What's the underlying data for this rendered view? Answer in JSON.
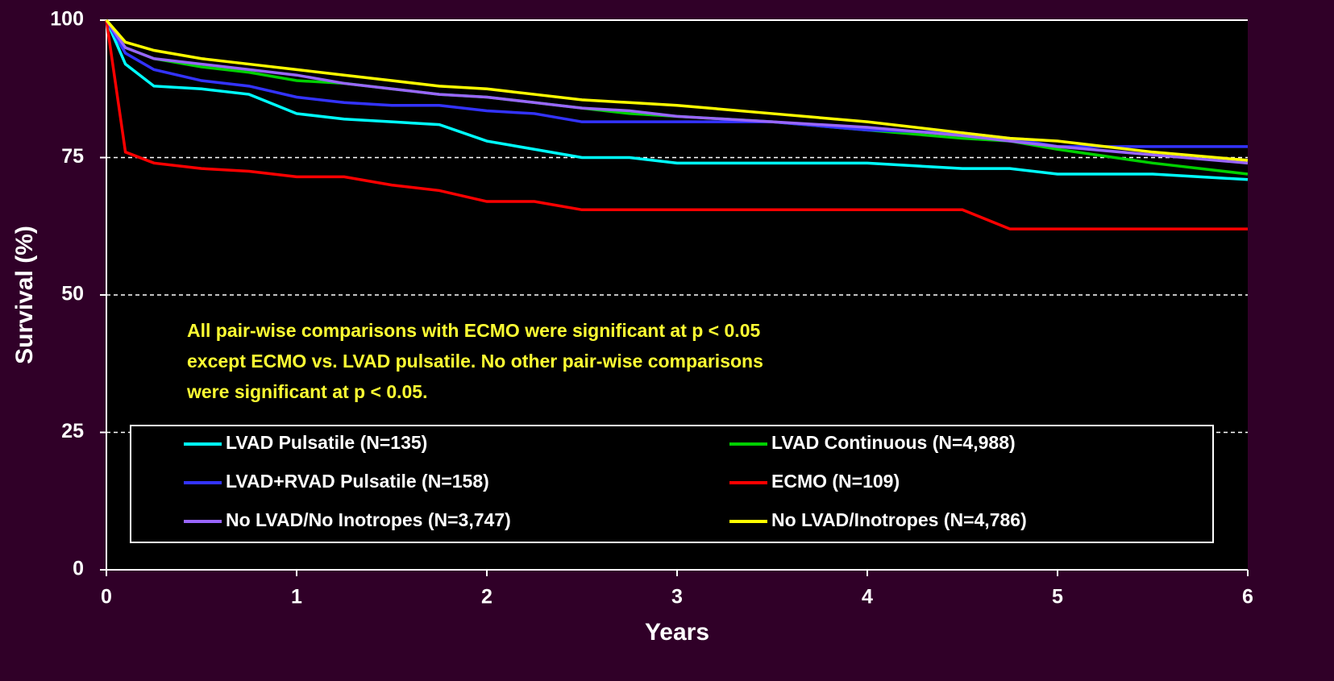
{
  "chart_data": {
    "type": "line",
    "xlabel": "Years",
    "ylabel": "Survival (%)",
    "annotation": [
      "All pair-wise comparisons with ECMO were significant at p < 0.05",
      "except ECMO vs. LVAD pulsatile. No other pair-wise comparisons",
      "were significant at p < 0.05."
    ],
    "x": [
      0,
      0.1,
      0.25,
      0.5,
      0.75,
      1,
      1.25,
      1.5,
      1.75,
      2,
      2.25,
      2.5,
      2.75,
      3,
      3.5,
      4,
      4.5,
      4.75,
      5,
      5.5,
      6
    ],
    "series": [
      {
        "name": "LVAD Pulsatile (N=135)",
        "color": "#00ffff",
        "values": [
          100,
          92,
          88,
          87.5,
          86.5,
          83,
          82,
          81.5,
          81,
          78,
          76.5,
          75,
          75,
          74,
          74,
          74,
          73,
          73,
          72,
          72,
          71
        ]
      },
      {
        "name": "LVAD Continuous (N=4,988)",
        "color": "#00d000",
        "values": [
          100,
          95,
          93,
          91.5,
          90.5,
          89,
          88.5,
          87.5,
          86.5,
          86,
          85,
          84,
          83,
          82.5,
          81.5,
          80,
          78.5,
          78,
          76.5,
          74,
          72
        ]
      },
      {
        "name": "LVAD+RVAD Pulsatile (N=158)",
        "color": "#3333ff",
        "values": [
          100,
          94,
          91,
          89,
          88,
          86,
          85,
          84.5,
          84.5,
          83.5,
          83,
          81.5,
          81.5,
          81.5,
          81.5,
          80,
          79.5,
          78.5,
          77,
          77,
          77
        ]
      },
      {
        "name": "ECMO (N=109)",
        "color": "#ff0000",
        "values": [
          100,
          76,
          74,
          73,
          72.5,
          71.5,
          71.5,
          70,
          69,
          67,
          67,
          65.5,
          65.5,
          65.5,
          65.5,
          65.5,
          65.5,
          62,
          62,
          62,
          62
        ]
      },
      {
        "name": "No LVAD/No Inotropes (N=3,747)",
        "color": "#9966ff",
        "values": [
          100,
          95,
          93,
          92,
          91,
          90,
          88.5,
          87.5,
          86.5,
          86,
          85,
          84,
          83.5,
          82.5,
          81.5,
          80.5,
          79,
          78,
          77,
          75.5,
          74
        ]
      },
      {
        "name": "No LVAD/Inotropes (N=4,786)",
        "color": "#ffff00",
        "values": [
          100,
          96,
          94.5,
          93,
          92,
          91,
          90,
          89,
          88,
          87.5,
          86.5,
          85.5,
          85,
          84.5,
          83,
          81.5,
          79.5,
          78.5,
          78,
          76,
          74.5
        ]
      }
    ],
    "xlim": [
      0,
      6
    ],
    "xticks": [
      0,
      1,
      2,
      3,
      4,
      5,
      6
    ],
    "ylim": [
      0,
      100
    ],
    "yticks": [
      0,
      25,
      50,
      75,
      100
    ],
    "grid": true
  }
}
